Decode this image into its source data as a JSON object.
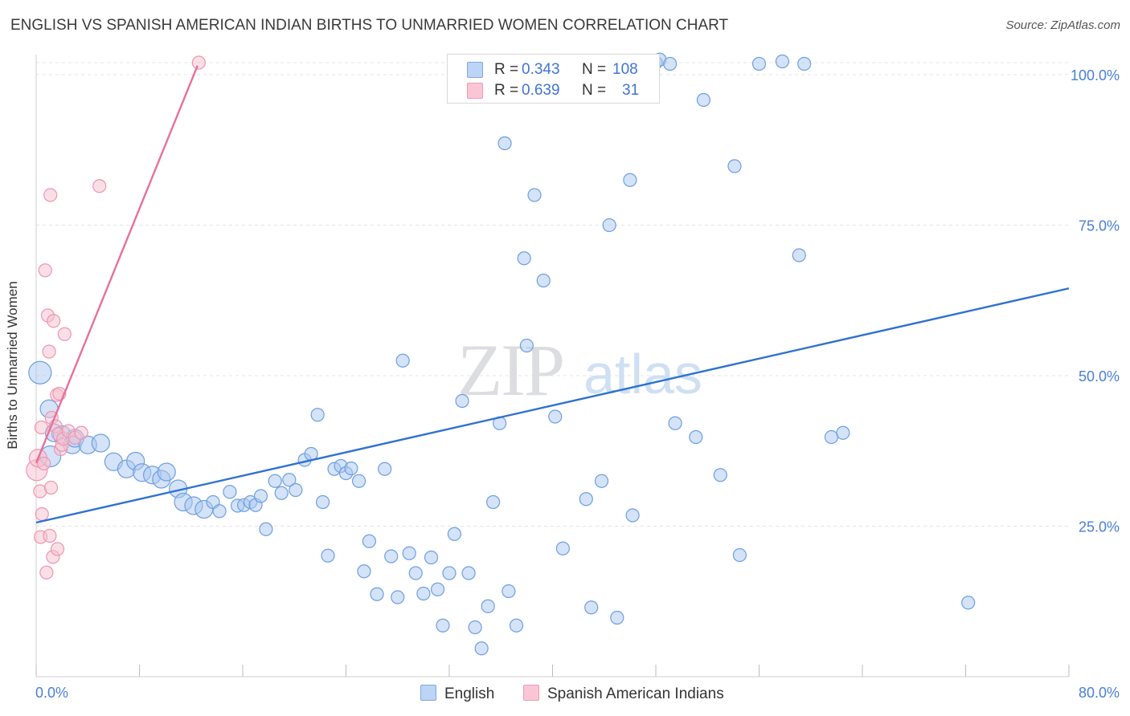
{
  "title": "ENGLISH VS SPANISH AMERICAN INDIAN BIRTHS TO UNMARRIED WOMEN CORRELATION CHART",
  "source": "Source: ZipAtlas.com",
  "watermark": {
    "zip": "ZIP",
    "atlas": "atlas"
  },
  "legend": {
    "english": {
      "r_label": "R = ",
      "r_value": "0.343",
      "n_label": "N = ",
      "n_value": "108"
    },
    "spanish": {
      "r_label": "R = ",
      "r_value": "0.639",
      "n_label": "N = ",
      "n_value": "31"
    }
  },
  "chart_data": {
    "type": "scatter",
    "title": "ENGLISH VS SPANISH AMERICAN INDIAN BIRTHS TO UNMARRIED WOMEN CORRELATION CHART",
    "xlabel": "",
    "ylabel": "Births to Unmarried Women",
    "xlim": [
      0,
      80
    ],
    "ylim": [
      0,
      102
    ],
    "x_tick_labels": [
      "0.0%",
      "80.0%"
    ],
    "y_tick_labels": [
      "25.0%",
      "50.0%",
      "75.0%",
      "100.0%"
    ],
    "y_ticks": [
      25,
      50,
      75,
      100
    ],
    "grid": true,
    "legend_position": "top-center",
    "series": [
      {
        "name": "English",
        "color": "#a9c7f0",
        "edge_color": "#6f9fe0",
        "trend_color": "#2f72d0",
        "trend": [
          [
            0,
            25.6
          ],
          [
            80,
            64.5
          ]
        ],
        "points": [
          [
            0.3,
            50.5,
            4
          ],
          [
            1.0,
            44.5,
            2
          ],
          [
            1.1,
            36.6,
            3
          ],
          [
            1.4,
            40.5,
            2
          ],
          [
            2.0,
            40.2,
            2
          ],
          [
            2.8,
            38.5,
            2
          ],
          [
            3.0,
            39.6,
            2
          ],
          [
            4.0,
            38.5,
            2
          ],
          [
            5.0,
            38.8,
            2
          ],
          [
            6.0,
            35.7,
            2
          ],
          [
            7.0,
            34.5,
            2
          ],
          [
            7.7,
            35.8,
            2
          ],
          [
            8.2,
            33.9,
            2
          ],
          [
            9.0,
            33.5,
            2
          ],
          [
            9.7,
            32.8,
            2
          ],
          [
            10.1,
            34.0,
            2
          ],
          [
            11.0,
            31.2,
            2
          ],
          [
            11.4,
            29.0,
            2
          ],
          [
            12.2,
            28.4,
            2
          ],
          [
            13.0,
            27.8,
            2
          ],
          [
            13.7,
            29.0,
            1
          ],
          [
            14.2,
            27.5,
            1
          ],
          [
            15.0,
            30.7,
            1
          ],
          [
            15.6,
            28.4,
            1
          ],
          [
            16.1,
            28.5,
            1
          ],
          [
            16.6,
            29.0,
            1
          ],
          [
            17.0,
            28.5,
            1
          ],
          [
            17.4,
            30.0,
            1
          ],
          [
            17.8,
            24.5,
            1
          ],
          [
            18.5,
            32.5,
            1
          ],
          [
            19.0,
            30.5,
            1
          ],
          [
            19.6,
            32.7,
            1
          ],
          [
            20.1,
            31.0,
            1
          ],
          [
            20.8,
            36.0,
            1
          ],
          [
            21.3,
            37.0,
            1
          ],
          [
            21.8,
            43.5,
            1
          ],
          [
            22.2,
            29.0,
            1
          ],
          [
            22.6,
            20.1,
            1
          ],
          [
            23.1,
            34.5,
            1
          ],
          [
            23.6,
            35.0,
            1
          ],
          [
            24.0,
            33.8,
            1
          ],
          [
            24.4,
            34.6,
            1
          ],
          [
            25.0,
            32.5,
            1
          ],
          [
            25.4,
            17.5,
            1
          ],
          [
            25.8,
            22.5,
            1
          ],
          [
            26.4,
            13.7,
            1
          ],
          [
            27.0,
            34.5,
            1
          ],
          [
            27.5,
            20.0,
            1
          ],
          [
            28.0,
            13.2,
            1
          ],
          [
            28.4,
            52.5,
            1
          ],
          [
            28.9,
            20.5,
            1
          ],
          [
            29.4,
            17.2,
            1
          ],
          [
            30.0,
            13.8,
            1
          ],
          [
            30.6,
            19.8,
            1
          ],
          [
            31.1,
            14.5,
            1
          ],
          [
            31.5,
            8.5,
            1
          ],
          [
            32.0,
            17.2,
            1
          ],
          [
            32.4,
            23.7,
            1
          ],
          [
            33.0,
            45.8,
            1
          ],
          [
            33.5,
            17.2,
            1
          ],
          [
            34.0,
            8.2,
            1
          ],
          [
            34.5,
            4.7,
            1
          ],
          [
            35.0,
            11.7,
            1
          ],
          [
            35.4,
            29.0,
            1
          ],
          [
            35.9,
            42.1,
            1
          ],
          [
            36.3,
            88.6,
            1
          ],
          [
            36.6,
            14.2,
            1
          ],
          [
            37.2,
            8.5,
            1
          ],
          [
            37.8,
            69.5,
            1
          ],
          [
            38.0,
            55.0,
            1
          ],
          [
            38.6,
            80.0,
            1
          ],
          [
            39.3,
            65.8,
            1
          ],
          [
            40.2,
            43.2,
            1
          ],
          [
            40.8,
            21.3,
            1
          ],
          [
            41.5,
            102.0,
            1
          ],
          [
            42.0,
            101.5,
            1
          ],
          [
            42.6,
            29.5,
            1
          ],
          [
            43.0,
            11.5,
            1
          ],
          [
            43.8,
            32.5,
            1
          ],
          [
            44.4,
            75.0,
            1
          ],
          [
            45.0,
            9.8,
            1
          ],
          [
            46.0,
            82.5,
            1
          ],
          [
            46.2,
            26.8,
            1
          ],
          [
            48.0,
            102.0,
            1
          ],
          [
            48.3,
            102.5,
            1
          ],
          [
            49.1,
            101.8,
            1
          ],
          [
            49.5,
            42.1,
            1
          ],
          [
            51.1,
            39.8,
            1
          ],
          [
            51.7,
            95.8,
            1
          ],
          [
            53.0,
            33.5,
            1
          ],
          [
            54.1,
            84.8,
            1
          ],
          [
            54.5,
            20.2,
            1
          ],
          [
            56.0,
            101.8,
            1
          ],
          [
            57.8,
            102.2,
            1
          ],
          [
            59.1,
            70.0,
            1
          ],
          [
            59.5,
            101.8,
            1
          ],
          [
            61.6,
            39.8,
            1
          ],
          [
            62.5,
            40.5,
            1
          ],
          [
            72.2,
            12.3,
            1
          ]
        ]
      },
      {
        "name": "Spanish American Indians",
        "color": "#f7bfd0",
        "edge_color": "#ee96b1",
        "trend_color": "#e8709a",
        "trend": [
          [
            0,
            35.5
          ],
          [
            12.5,
            101.5
          ]
        ],
        "points": [
          [
            0.05,
            34.3,
            3
          ],
          [
            0.15,
            36.3,
            2
          ],
          [
            0.3,
            30.8,
            1
          ],
          [
            0.35,
            23.2,
            1
          ],
          [
            0.4,
            41.4,
            1
          ],
          [
            0.45,
            27.0,
            1
          ],
          [
            0.6,
            35.4,
            1
          ],
          [
            0.7,
            67.5,
            1
          ],
          [
            0.8,
            17.3,
            1
          ],
          [
            0.9,
            60.0,
            1
          ],
          [
            1.0,
            54.0,
            1
          ],
          [
            1.05,
            23.4,
            1
          ],
          [
            1.1,
            80.0,
            1
          ],
          [
            1.15,
            31.4,
            1
          ],
          [
            1.2,
            43.0,
            1
          ],
          [
            1.3,
            19.9,
            1
          ],
          [
            1.35,
            59.1,
            1
          ],
          [
            1.5,
            41.6,
            1
          ],
          [
            1.6,
            46.8,
            1
          ],
          [
            1.65,
            21.2,
            1
          ],
          [
            1.7,
            40.3,
            1
          ],
          [
            1.8,
            47.0,
            1
          ],
          [
            1.9,
            37.8,
            1
          ],
          [
            2.0,
            38.5,
            1
          ],
          [
            2.1,
            39.5,
            1
          ],
          [
            2.2,
            56.9,
            1
          ],
          [
            2.5,
            40.8,
            1
          ],
          [
            3.0,
            39.7,
            1
          ],
          [
            3.5,
            40.5,
            1
          ],
          [
            4.9,
            81.5,
            1
          ],
          [
            12.6,
            102.0,
            1
          ]
        ]
      }
    ]
  }
}
